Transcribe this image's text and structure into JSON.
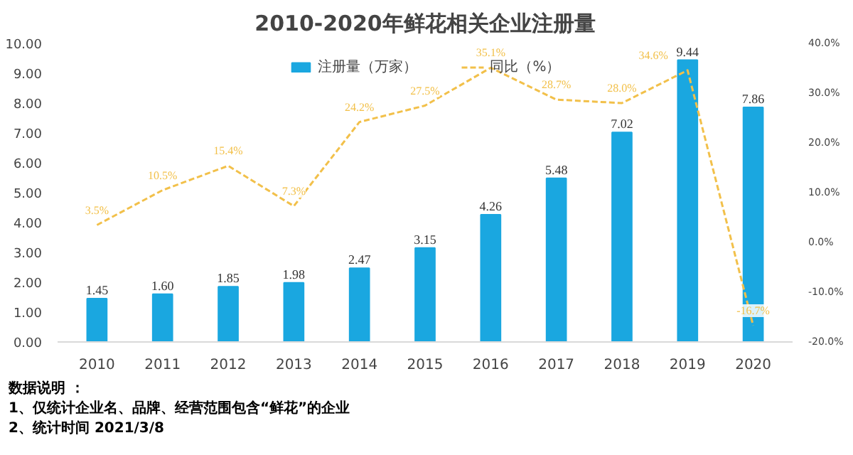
{
  "chart_data": {
    "type": "bar",
    "title": "2010-2020年鲜花相关企业注册量",
    "categories": [
      "2010",
      "2011",
      "2012",
      "2013",
      "2014",
      "2015",
      "2016",
      "2017",
      "2018",
      "2019",
      "2020"
    ],
    "series": [
      {
        "name": "注册量（万家）",
        "color": "#1aa7e0",
        "values": [
          1.45,
          1.6,
          1.85,
          1.98,
          2.47,
          3.15,
          4.26,
          5.48,
          7.02,
          9.44,
          7.86
        ],
        "value_labels": [
          "1.45",
          "1.60",
          "1.85",
          "1.98",
          "2.47",
          "3.15",
          "4.26",
          "5.48",
          "7.02",
          "9.44",
          "7.86"
        ]
      },
      {
        "name": "同比（%）",
        "type": "line",
        "axis": "y2",
        "color": "#f2c04a",
        "line_style": "dashed",
        "values": [
          3.5,
          10.5,
          15.4,
          7.3,
          24.2,
          27.5,
          35.1,
          28.7,
          28.0,
          34.6,
          -16.7
        ],
        "value_labels": [
          "3.5%",
          "10.5%",
          "15.4%",
          "7.3%",
          "24.2%",
          "27.5%",
          "35.1%",
          "28.7%",
          "28.0%",
          "34.6%",
          "-16.7%"
        ]
      }
    ],
    "ylim": [
      0,
      10
    ],
    "yticks": [
      {
        "value": 0,
        "label": "0.00"
      },
      {
        "value": 1,
        "label": "1.00"
      },
      {
        "value": 2,
        "label": "2.00"
      },
      {
        "value": 3,
        "label": "3.00"
      },
      {
        "value": 4,
        "label": "4.00"
      },
      {
        "value": 5,
        "label": "5.00"
      },
      {
        "value": 6,
        "label": "6.00"
      },
      {
        "value": 7,
        "label": "7.00"
      },
      {
        "value": 8,
        "label": "8.00"
      },
      {
        "value": 9,
        "label": "9.00"
      },
      {
        "value": 10,
        "label": "10.00"
      }
    ],
    "y2lim": [
      -20,
      40
    ],
    "y2ticks": [
      {
        "value": -20,
        "label": "-20.0%"
      },
      {
        "value": -10,
        "label": "-10.0%"
      },
      {
        "value": 0,
        "label": "0.0%"
      },
      {
        "value": 10,
        "label": "10.0%"
      },
      {
        "value": 20,
        "label": "20.0%"
      },
      {
        "value": 30,
        "label": "30.0%"
      },
      {
        "value": 40,
        "label": "40.0%"
      }
    ],
    "grid": false,
    "legend": "top",
    "marker": "none",
    "annotations": [
      "数据说明 ：",
      "1、仅统计企业名、品牌、经营范围包含“鲜花”的企业",
      "2、统计时间 2021/3/8"
    ]
  }
}
